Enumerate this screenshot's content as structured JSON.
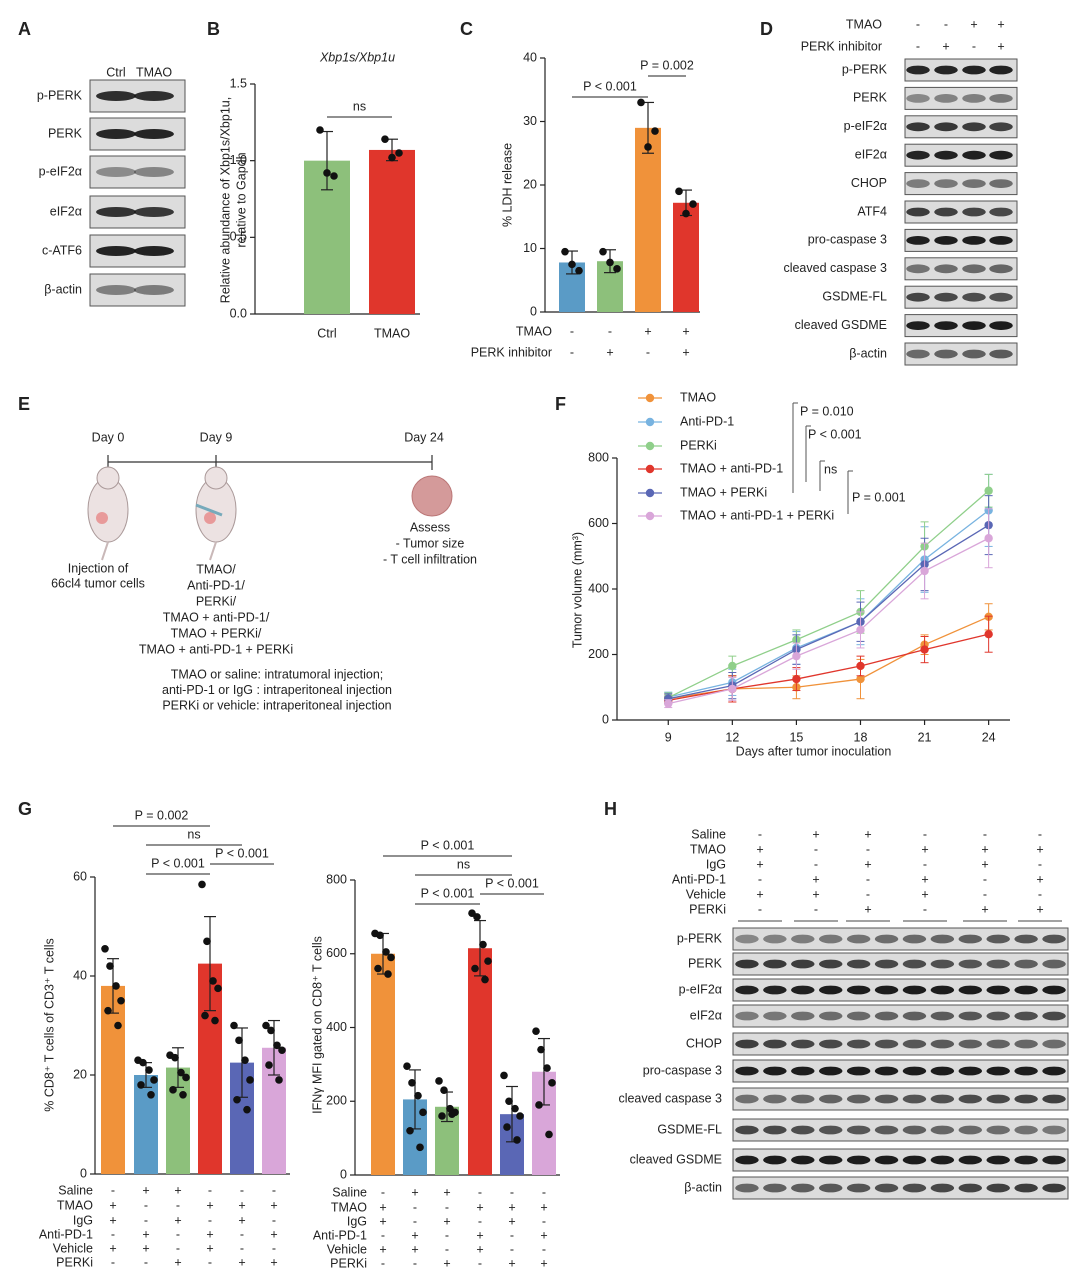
{
  "panel_labels": [
    "A",
    "B",
    "C",
    "D",
    "E",
    "F",
    "G",
    "H"
  ],
  "blots": [
    {
      "lanes": [
        "Ctrl",
        "TMAO"
      ],
      "rows": [
        "p-PERK",
        "PERK",
        "p-eIF2α",
        "eIF2α",
        "c-ATF6",
        "β-actin"
      ]
    },
    {
      "conditions": [
        {
          "name": "TMAO",
          "signs": [
            "-",
            "-",
            "+",
            "+"
          ]
        },
        {
          "name": "PERK inhibitor",
          "signs": [
            "-",
            "+",
            "-",
            "+"
          ]
        }
      ],
      "rows": [
        "p-PERK",
        "PERK",
        "p-eIF2α",
        "eIF2α",
        "CHOP",
        "ATF4",
        "pro-caspase 3",
        "cleaved caspase 3",
        "GSDME-FL",
        "cleaved GSDME",
        "β-actin"
      ]
    },
    {
      "conditions": [
        {
          "name": "Saline",
          "signs": [
            "-",
            "+",
            "+",
            "-",
            "-",
            "-"
          ]
        },
        {
          "name": "TMAO",
          "signs": [
            "+",
            "-",
            "-",
            "+",
            "+",
            "+"
          ]
        },
        {
          "name": "IgG",
          "signs": [
            "+",
            "-",
            "+",
            "-",
            "+",
            "-"
          ]
        },
        {
          "name": "Anti-PD-1",
          "signs": [
            "-",
            "+",
            "-",
            "+",
            "-",
            "+"
          ]
        },
        {
          "name": "Vehicle",
          "signs": [
            "+",
            "+",
            "-",
            "+",
            "-",
            "-"
          ]
        },
        {
          "name": "PERKi",
          "signs": [
            "-",
            "-",
            "+",
            "-",
            "+",
            "+"
          ]
        }
      ],
      "rows": [
        "p-PERK",
        "PERK",
        "p-eIF2α",
        "eIF2α",
        "CHOP",
        "pro-caspase 3",
        "cleaved caspase 3",
        "GSDME-FL",
        "cleaved GSDME",
        "β-actin"
      ]
    }
  ],
  "diagram": {
    "timepoints": [
      "Day 0",
      "Day 9",
      "Day 24"
    ],
    "injection": [
      "Injection of",
      "66cl4 tumor cells"
    ],
    "treatments": [
      "TMAO/",
      "Anti-PD-1/",
      "PERKi/",
      "TMAO + anti-PD-1/",
      "TMAO + PERKi/",
      "TMAO + anti-PD-1 + PERKi"
    ],
    "assess": [
      "Assess",
      "- Tumor size",
      "- T cell infiltration"
    ],
    "notes": [
      "TMAO or saline: intratumoral injection;",
      "anti-PD-1 or IgG : intraperitoneal injection",
      "PERKi or vehicle: intraperitoneal injection"
    ]
  },
  "chart_data": [
    {
      "type": "bar",
      "title": "Xbp1s/Xbp1u",
      "ylabel": [
        "Relative abundance of Xbp1s/Xbp1u,",
        "relative to Gapdh"
      ],
      "categories": [
        "Ctrl",
        "TMAO"
      ],
      "values": [
        1.0,
        1.07
      ],
      "errors": [
        0.19,
        0.07
      ],
      "points": [
        [
          1.2,
          0.9,
          0.92
        ],
        [
          1.14,
          1.05,
          1.02
        ]
      ],
      "colors": [
        "#8dc07b",
        "#e0362c"
      ],
      "ylim": [
        0,
        1.5
      ],
      "yticks": [
        {
          "value": 0,
          "label": "0.0"
        },
        0.5,
        {
          "value": 1,
          "label": "1.0"
        },
        1.5
      ],
      "annotations": [
        "ns"
      ]
    },
    {
      "type": "bar",
      "ylabel": "% LDH release",
      "conditions": [
        {
          "name": "TMAO",
          "signs": [
            "-",
            "-",
            "+",
            "+"
          ]
        },
        {
          "name": "PERK inhibitor",
          "signs": [
            "-",
            "+",
            "-",
            "+"
          ]
        }
      ],
      "values": [
        7.8,
        8.0,
        29,
        17.2
      ],
      "errors": [
        1.8,
        1.8,
        4,
        2
      ],
      "points": [
        [
          9.5,
          6.5,
          7.5
        ],
        [
          9.5,
          6.8,
          7.8
        ],
        [
          33,
          28.5,
          26
        ],
        [
          19,
          17,
          15.5
        ]
      ],
      "colors": [
        "#5a9bc6",
        "#8dc07b",
        "#f0923a",
        "#e0362c"
      ],
      "ylim": [
        0,
        40
      ],
      "yticks": [
        0,
        10,
        20,
        30,
        40
      ],
      "annotations": [
        "P < 0.001",
        "P = 0.002"
      ]
    },
    {
      "type": "line",
      "xlabel": "Days after tumor inoculation",
      "ylabel": "Tumor volume (mm³)",
      "x": [
        9,
        12,
        15,
        18,
        21,
        24
      ],
      "xlim": [
        6.6,
        25
      ],
      "xticks": [
        9,
        12,
        15,
        18,
        21,
        24
      ],
      "ylim": [
        0,
        800
      ],
      "yticks": [
        0,
        200,
        400,
        600,
        800
      ],
      "series": [
        {
          "name": "TMAO",
          "color": "#f0923a",
          "values": [
            65,
            95,
            100,
            125,
            230,
            315
          ],
          "errors": [
            12,
            40,
            35,
            60,
            30,
            40
          ]
        },
        {
          "name": "Anti-PD-1",
          "color": "#78b3e0",
          "values": [
            70,
            115,
            220,
            300,
            490,
            640
          ],
          "errors": [
            15,
            40,
            50,
            70,
            100,
            110
          ]
        },
        {
          "name": "PERKi",
          "color": "#8fcf8a",
          "values": [
            68,
            165,
            245,
            330,
            530,
            700
          ],
          "errors": [
            15,
            30,
            30,
            65,
            75,
            50
          ]
        },
        {
          "name": "TMAO + anti-PD-1",
          "color": "#e0362c",
          "values": [
            60,
            95,
            125,
            165,
            215,
            262
          ],
          "errors": [
            10,
            40,
            35,
            30,
            40,
            55
          ]
        },
        {
          "name": "TMAO + PERKi",
          "color": "#5a67b5",
          "values": [
            65,
            105,
            215,
            300,
            475,
            595
          ],
          "errors": [
            15,
            40,
            45,
            60,
            80,
            90
          ]
        },
        {
          "name": "TMAO + anti-PD-1 + PERKi",
          "color": "#d9a6d9",
          "values": [
            50,
            95,
            195,
            275,
            455,
            555
          ],
          "errors": [
            12,
            35,
            40,
            55,
            85,
            90
          ]
        }
      ],
      "annotations": [
        "P = 0.010",
        "P < 0.001",
        "ns",
        "P = 0.001"
      ]
    },
    {
      "type": "bar",
      "ylabel": "% CD8⁺ T cells of CD3⁺ T cells",
      "conditions": [
        {
          "name": "Saline",
          "signs": [
            "-",
            "+",
            "+",
            "-",
            "-",
            "-"
          ]
        },
        {
          "name": "TMAO",
          "signs": [
            "+",
            "-",
            "-",
            "+",
            "+",
            "+"
          ]
        },
        {
          "name": "IgG",
          "signs": [
            "+",
            "-",
            "+",
            "-",
            "+",
            "-"
          ]
        },
        {
          "name": "Anti-PD-1",
          "signs": [
            "-",
            "+",
            "-",
            "+",
            "-",
            "+"
          ]
        },
        {
          "name": "Vehicle",
          "signs": [
            "+",
            "+",
            "-",
            "+",
            "-",
            "-"
          ]
        },
        {
          "name": "PERKi",
          "signs": [
            "-",
            "-",
            "+",
            "-",
            "+",
            "+"
          ]
        }
      ],
      "values": [
        38,
        20,
        21.5,
        42.5,
        22.5,
        25.5
      ],
      "errors": [
        5.5,
        2.5,
        4,
        9.5,
        7,
        5.5
      ],
      "points": [
        [
          45.5,
          42,
          38,
          35,
          33,
          30
        ],
        [
          23,
          22.5,
          21,
          19,
          18,
          16
        ],
        [
          24,
          23.5,
          20.5,
          19.5,
          17,
          16
        ],
        [
          58.5,
          47,
          39,
          37.5,
          32,
          31
        ],
        [
          30,
          27,
          23,
          19,
          15,
          13
        ],
        [
          30,
          29,
          26,
          25,
          22,
          19
        ]
      ],
      "colors": [
        "#f0923a",
        "#5a9bc6",
        "#8dc07b",
        "#e0362c",
        "#5a67b5",
        "#d9a6d9"
      ],
      "ylim": [
        0,
        60
      ],
      "yticks": [
        0,
        20,
        40,
        60
      ],
      "annotations": [
        "P = 0.002",
        "ns",
        "P < 0.001",
        "P < 0.001"
      ]
    },
    {
      "type": "bar",
      "ylabel": "IFNγ MFI gated on CD8⁺ T cells",
      "conditions": [
        {
          "name": "Saline",
          "signs": [
            "-",
            "+",
            "+",
            "-",
            "-",
            "-"
          ]
        },
        {
          "name": "TMAO",
          "signs": [
            "+",
            "-",
            "-",
            "+",
            "+",
            "+"
          ]
        },
        {
          "name": "IgG",
          "signs": [
            "+",
            "-",
            "+",
            "-",
            "+",
            "-"
          ]
        },
        {
          "name": "Anti-PD-1",
          "signs": [
            "-",
            "+",
            "-",
            "+",
            "-",
            "+"
          ]
        },
        {
          "name": "Vehicle",
          "signs": [
            "+",
            "+",
            "-",
            "+",
            "-",
            "-"
          ]
        },
        {
          "name": "PERKi",
          "signs": [
            "-",
            "-",
            "+",
            "-",
            "+",
            "+"
          ]
        }
      ],
      "values": [
        600,
        205,
        185,
        615,
        165,
        280
      ],
      "errors": [
        55,
        80,
        40,
        75,
        75,
        90
      ],
      "points": [
        [
          655,
          650,
          605,
          590,
          560,
          545
        ],
        [
          295,
          250,
          215,
          170,
          120,
          75
        ],
        [
          255,
          230,
          180,
          170,
          160,
          165
        ],
        [
          710,
          700,
          625,
          580,
          560,
          530
        ],
        [
          270,
          200,
          180,
          160,
          130,
          95
        ],
        [
          390,
          340,
          290,
          250,
          190,
          110
        ]
      ],
      "colors": [
        "#f0923a",
        "#5a9bc6",
        "#8dc07b",
        "#e0362c",
        "#5a67b5",
        "#d9a6d9"
      ],
      "ylim": [
        0,
        800
      ],
      "yticks": [
        0,
        200,
        400,
        600,
        800
      ],
      "annotations": [
        "P < 0.001",
        "ns",
        "P < 0.001",
        "P < 0.001"
      ]
    }
  ]
}
